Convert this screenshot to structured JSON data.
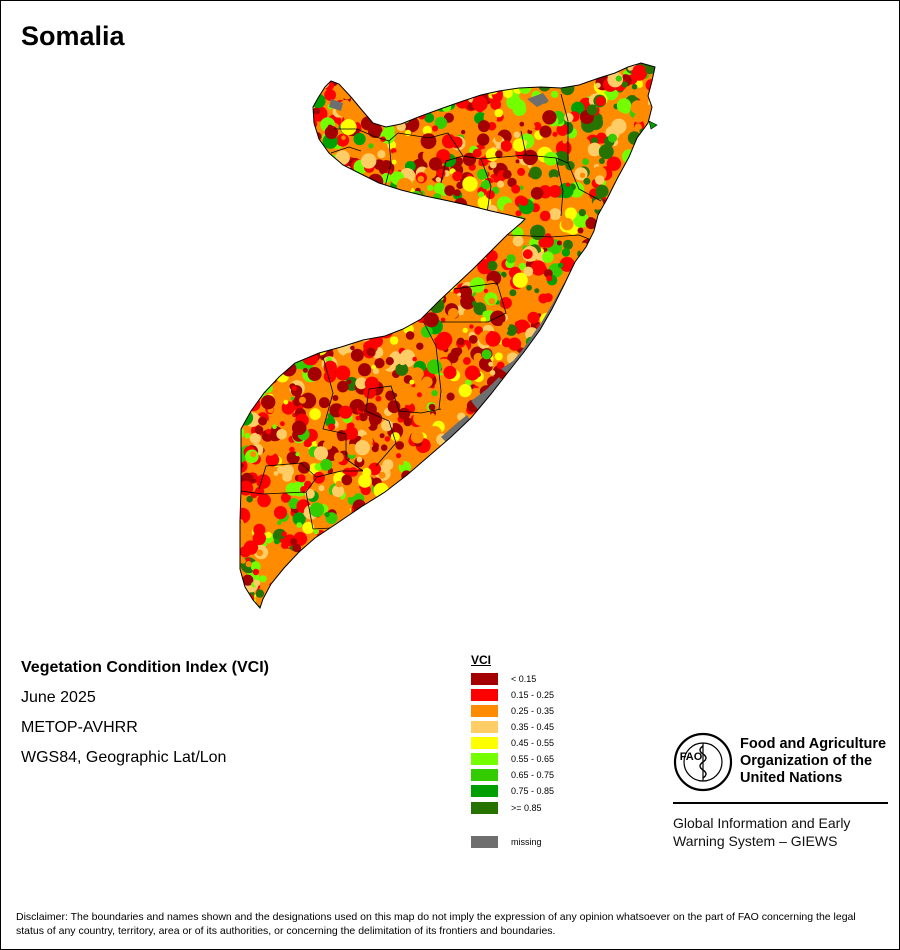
{
  "map": {
    "title": "Somalia",
    "info": {
      "index_name": "Vegetation Condition Index (VCI)",
      "date": "June 2025",
      "sensor": "METOP-AVHRR",
      "projection": "WGS84, Geographic Lat/Lon"
    },
    "legend": {
      "title": "VCI",
      "classes": [
        {
          "label": "< 0.15",
          "color": "#a50000"
        },
        {
          "label": "0.15 - 0.25",
          "color": "#ff0000"
        },
        {
          "label": "0.25 - 0.35",
          "color": "#ff8c00"
        },
        {
          "label": "0.35 - 0.45",
          "color": "#ffcc66"
        },
        {
          "label": "0.45 - 0.55",
          "color": "#ffff00"
        },
        {
          "label": "0.55 - 0.65",
          "color": "#73ff00"
        },
        {
          "label": "0.65 - 0.75",
          "color": "#33cc00"
        },
        {
          "label": "0.75 - 0.85",
          "color": "#00a000"
        },
        {
          "label": ">= 0.85",
          "color": "#267300"
        }
      ],
      "missing": {
        "label": "missing",
        "color": "#6e6e6e"
      }
    },
    "logo": {
      "initials": "FAO",
      "motto_left": "FIAT",
      "motto_right": "PANIS",
      "org_line_1": "Food and Agriculture",
      "org_line_2": "Organization of the",
      "org_line_3": "United Nations",
      "system_line_1": "Global Information and Early",
      "system_line_2": "Warning System – GIEWS"
    },
    "disclaimer": "Disclaimer: The boundaries and names shown and the designations used on this map do not imply the expression of any opinion whatsoever on the part of FAO concerning the legal status of any country, territory, area or of its authorities, or concerning the delimitation of its frontiers and boundaries."
  }
}
